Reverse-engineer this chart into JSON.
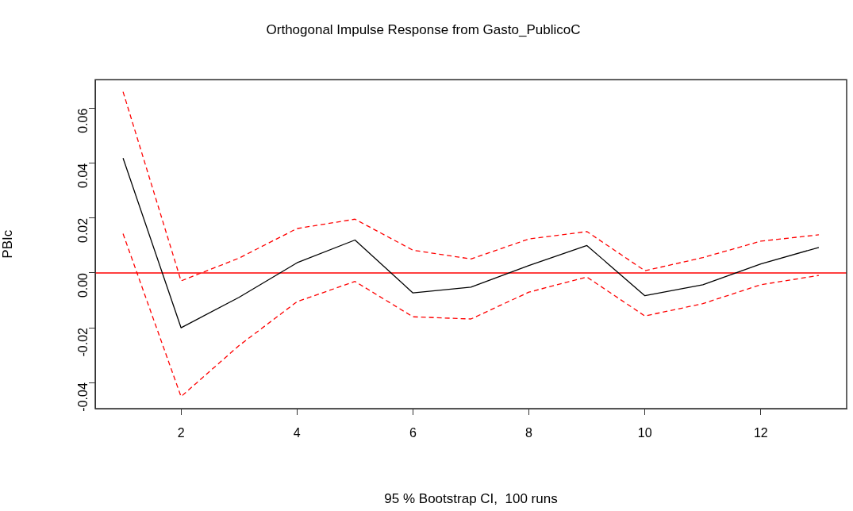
{
  "chart_data": {
    "type": "line",
    "title": "Orthogonal Impulse Response from Gasto_PublicoC",
    "xlabel": "95 % Bootstrap CI,  100 runs",
    "ylabel": "PBIc",
    "x": [
      1,
      2,
      3,
      4,
      5,
      6,
      7,
      8,
      9,
      10,
      11,
      12,
      13
    ],
    "series": [
      {
        "color": "#000000",
        "line_style": "solid",
        "values": [
          0.0419,
          -0.02,
          -0.0089,
          0.0037,
          0.012,
          -0.0073,
          -0.0052,
          0.0027,
          0.01,
          -0.0083,
          -0.0043,
          0.0033,
          0.0093
        ]
      },
      {
        "color": "#ff0000",
        "line_style": "dashed",
        "values": [
          0.0661,
          -0.0029,
          0.0054,
          0.0162,
          0.0196,
          0.0083,
          0.0051,
          0.0124,
          0.0151,
          0.0008,
          0.0056,
          0.0116,
          0.0139
        ]
      },
      {
        "color": "#ff0000",
        "line_style": "dashed",
        "values": [
          0.0143,
          -0.0451,
          -0.0265,
          -0.0105,
          -0.0031,
          -0.016,
          -0.0168,
          -0.007,
          -0.0015,
          -0.0157,
          -0.0112,
          -0.0043,
          -0.0009
        ]
      }
    ],
    "xlim": [
      0.52,
      13.48
    ],
    "xticks": [
      2,
      4,
      6,
      8,
      10,
      12
    ],
    "ylim": [
      -0.0495,
      0.0705
    ],
    "yticks": [
      -0.04,
      -0.02,
      {
        "value": 0,
        "label": "0.00"
      },
      0.02,
      0.04,
      0.06
    ],
    "ref_lines": [
      {
        "axis": "y",
        "value": 0,
        "color": "#ff0000"
      }
    ],
    "grid": false,
    "legend": false,
    "marker": "none"
  }
}
